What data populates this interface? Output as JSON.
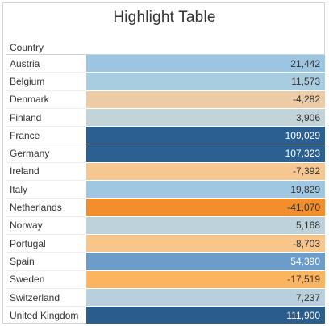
{
  "chart_data": {
    "type": "table",
    "title": "Highlight Table",
    "column_header": "Country",
    "rows": [
      {
        "country": "Austria",
        "value": 21442,
        "label": "21,442",
        "color": "#9cc5e1",
        "text_color": "#333333"
      },
      {
        "country": "Belgium",
        "value": 11573,
        "label": "11,573",
        "color": "#a9cde0",
        "text_color": "#333333"
      },
      {
        "country": "Denmark",
        "value": -4282,
        "label": "-4,282",
        "color": "#eccba7",
        "text_color": "#333333"
      },
      {
        "country": "Finland",
        "value": 3906,
        "label": "3,906",
        "color": "#c2d4d8",
        "text_color": "#333333"
      },
      {
        "country": "France",
        "value": 109029,
        "label": "109,029",
        "color": "#2c5f91",
        "text_color": "#ffffff"
      },
      {
        "country": "Germany",
        "value": 107323,
        "label": "107,323",
        "color": "#2d6092",
        "text_color": "#ffffff"
      },
      {
        "country": "Ireland",
        "value": -7392,
        "label": "-7,392",
        "color": "#f7c792",
        "text_color": "#333333"
      },
      {
        "country": "Italy",
        "value": 19829,
        "label": "19,829",
        "color": "#9fc7e1",
        "text_color": "#333333"
      },
      {
        "country": "Netherlands",
        "value": -41070,
        "label": "-41,070",
        "color": "#f28e2b",
        "text_color": "#333333"
      },
      {
        "country": "Norway",
        "value": 5168,
        "label": "5,168",
        "color": "#bdd2da",
        "text_color": "#333333"
      },
      {
        "country": "Portugal",
        "value": -8703,
        "label": "-8,703",
        "color": "#f8c58a",
        "text_color": "#333333"
      },
      {
        "country": "Spain",
        "value": 54390,
        "label": "54,390",
        "color": "#6c9cc8",
        "text_color": "#ffffff"
      },
      {
        "country": "Sweden",
        "value": -17519,
        "label": "-17,519",
        "color": "#fcb45e",
        "text_color": "#333333"
      },
      {
        "country": "Switzerland",
        "value": 7237,
        "label": "7,237",
        "color": "#b8d0dd",
        "text_color": "#333333"
      },
      {
        "country": "United Kingdom",
        "value": 111900,
        "label": "111,900",
        "color": "#2a5c8e",
        "text_color": "#ffffff"
      }
    ]
  }
}
